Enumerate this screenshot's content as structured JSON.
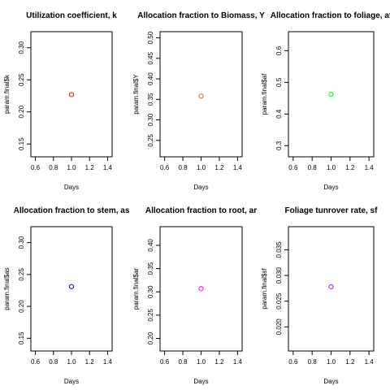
{
  "chart_data": [
    {
      "type": "scatter",
      "title": "Utilization coefficient, k",
      "xlabel": "Days",
      "ylabel": "param.final$k",
      "xlim": [
        0.55,
        1.45
      ],
      "ylim": [
        0.13,
        0.325
      ],
      "xticks": [
        "0.6",
        "0.8",
        "1.0",
        "1.2",
        "1.4"
      ],
      "yticks": [
        "0.15",
        "0.20",
        "0.25",
        "0.30"
      ],
      "points": [
        {
          "x": 1.0,
          "y": 0.227
        }
      ],
      "color": "#ff0000"
    },
    {
      "type": "scatter",
      "title": "Allocation fraction to Biomass, Y",
      "xlabel": "Days",
      "ylabel": "param.final$Y",
      "xlim": [
        0.55,
        1.45
      ],
      "ylim": [
        0.21,
        0.515
      ],
      "xticks": [
        "0.6",
        "0.8",
        "1.0",
        "1.2",
        "1.4"
      ],
      "yticks": [
        "0.25",
        "0.30",
        "0.35",
        "0.40",
        "0.45",
        "0.50"
      ],
      "points": [
        {
          "x": 1.0,
          "y": 0.358
        }
      ],
      "color": "#d2691e"
    },
    {
      "type": "scatter",
      "title": "Allocation fraction to foliage, af",
      "xlabel": "Days",
      "ylabel": "param.final$af",
      "xlim": [
        0.55,
        1.45
      ],
      "ylim": [
        0.265,
        0.66
      ],
      "xticks": [
        "0.6",
        "0.8",
        "1.0",
        "1.2",
        "1.4"
      ],
      "yticks": [
        "0.3",
        "0.4",
        "0.5",
        "0.6"
      ],
      "points": [
        {
          "x": 1.0,
          "y": 0.462
        }
      ],
      "color": "#00ff00"
    },
    {
      "type": "scatter",
      "title": "Allocation fraction to stem, as",
      "xlabel": "Days",
      "ylabel": "param.final$as",
      "xlim": [
        0.55,
        1.45
      ],
      "ylim": [
        0.13,
        0.325
      ],
      "xticks": [
        "0.6",
        "0.8",
        "1.0",
        "1.2",
        "1.4"
      ],
      "yticks": [
        "0.15",
        "0.20",
        "0.25",
        "0.30"
      ],
      "points": [
        {
          "x": 1.0,
          "y": 0.231
        }
      ],
      "color": "#0000ff"
    },
    {
      "type": "scatter",
      "title": "Allocation fraction to root, ar",
      "xlabel": "Days",
      "ylabel": "param.final$ar",
      "xlim": [
        0.55,
        1.45
      ],
      "ylim": [
        0.173,
        0.44
      ],
      "xticks": [
        "0.6",
        "0.8",
        "1.0",
        "1.2",
        "1.4"
      ],
      "yticks": [
        "0.20",
        "0.25",
        "0.30",
        "0.35",
        "0.40"
      ],
      "points": [
        {
          "x": 1.0,
          "y": 0.307
        }
      ],
      "color": "#ff00ff"
    },
    {
      "type": "scatter",
      "title": "Foliage tunrover rate, sf",
      "xlabel": "Days",
      "ylabel": "param.final$sf",
      "xlim": [
        0.55,
        1.45
      ],
      "ylim": [
        0.0153,
        0.0395
      ],
      "xticks": [
        "0.6",
        "0.8",
        "1.0",
        "1.2",
        "1.4"
      ],
      "yticks": [
        "0.020",
        "0.025",
        "0.030",
        "0.035"
      ],
      "points": [
        {
          "x": 1.0,
          "y": 0.0278
        }
      ],
      "color": "#a020f0"
    }
  ]
}
